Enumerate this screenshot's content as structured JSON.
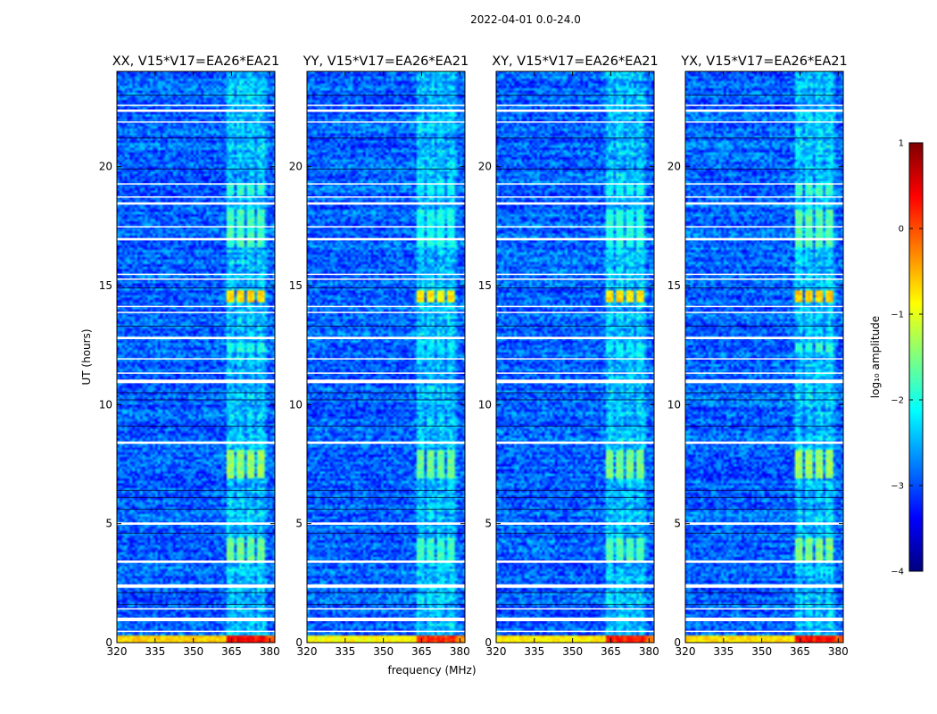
{
  "chart_data": {
    "type": "heatmap",
    "suptitle": "2022-04-01 0.0-24.0",
    "xlabel": "frequency (MHz)",
    "ylabel": "UT (hours)",
    "xlim": [
      320,
      382
    ],
    "ylim": [
      0,
      24
    ],
    "xticks": [
      320,
      335,
      350,
      365,
      380
    ],
    "yticks": [
      0,
      5,
      10,
      15,
      20
    ],
    "colorbar": {
      "label": "log₁₀ amplitude",
      "range": [
        -4,
        1
      ],
      "ticks": [
        1,
        0,
        -1,
        -2,
        -3,
        -4
      ],
      "tick_labels": [
        "1",
        "0",
        "−1",
        "−2",
        "−3",
        "−4"
      ],
      "colormap": "jet",
      "colors": [
        "#00007f",
        "#0000ff",
        "#007fff",
        "#00ffff",
        "#7fff7f",
        "#ffff00",
        "#ff7f00",
        "#ff0000",
        "#7f0000"
      ]
    },
    "background_level": -2.9,
    "rfi_band_mhz": [
      363.5,
      378.5
    ],
    "rfi_columns_mhz": [
      364.5,
      368.5,
      372.5,
      376.5
    ],
    "rfi_bursts": [
      {
        "t": [
          3.4,
          4.4
        ],
        "level": -1.6
      },
      {
        "t": [
          6.9,
          8.1
        ],
        "level": -1.4
      },
      {
        "t": [
          12.2,
          12.6
        ],
        "level": -2.0
      },
      {
        "t": [
          14.3,
          14.8
        ],
        "level": -0.7
      },
      {
        "t": [
          16.6,
          18.2
        ],
        "level": -1.8
      },
      {
        "t": [
          18.8,
          19.3
        ],
        "level": -1.9
      }
    ],
    "low_edge_level": -0.8,
    "flagged_ut_ranges": [
      [
        0.45,
        0.5
      ],
      [
        0.9,
        1.05
      ],
      [
        1.4,
        1.45
      ],
      [
        2.3,
        2.45
      ],
      [
        3.35,
        3.45
      ],
      [
        4.95,
        5.05
      ],
      [
        8.35,
        8.45
      ],
      [
        10.9,
        11.05
      ],
      [
        11.3,
        11.35
      ],
      [
        11.9,
        11.95
      ],
      [
        12.75,
        12.85
      ],
      [
        13.85,
        13.9
      ],
      [
        14.1,
        14.15
      ],
      [
        15.25,
        15.3
      ],
      [
        15.45,
        15.5
      ],
      [
        16.9,
        17.0
      ],
      [
        17.45,
        17.5
      ],
      [
        18.4,
        18.5
      ],
      [
        18.7,
        18.75
      ],
      [
        19.25,
        19.3
      ],
      [
        21.85,
        21.9
      ],
      [
        22.3,
        22.4
      ],
      [
        22.55,
        22.6
      ]
    ],
    "dark_ut_lines": [
      1.6,
      2.1,
      4.6,
      5.6,
      6.1,
      6.4,
      9.1,
      10.2,
      10.5,
      13.3,
      14.9,
      19.9,
      21.2,
      23.0
    ],
    "panels": [
      {
        "title": "XX, V15*V17=EA26*EA21",
        "show_ylabel": true,
        "show_xlabel": false,
        "burst_scale": 1.0,
        "edge_scale": 0.8
      },
      {
        "title": "YY, V15*V17=EA26*EA21",
        "show_ylabel": false,
        "show_xlabel": true,
        "burst_scale": 1.15,
        "edge_scale": 1.1
      },
      {
        "title": "XY, V15*V17=EA26*EA21",
        "show_ylabel": false,
        "show_xlabel": false,
        "burst_scale": 1.1,
        "edge_scale": 1.0
      },
      {
        "title": "YX, V15*V17=EA26*EA21",
        "show_ylabel": false,
        "show_xlabel": false,
        "burst_scale": 0.95,
        "edge_scale": 0.9
      }
    ]
  }
}
